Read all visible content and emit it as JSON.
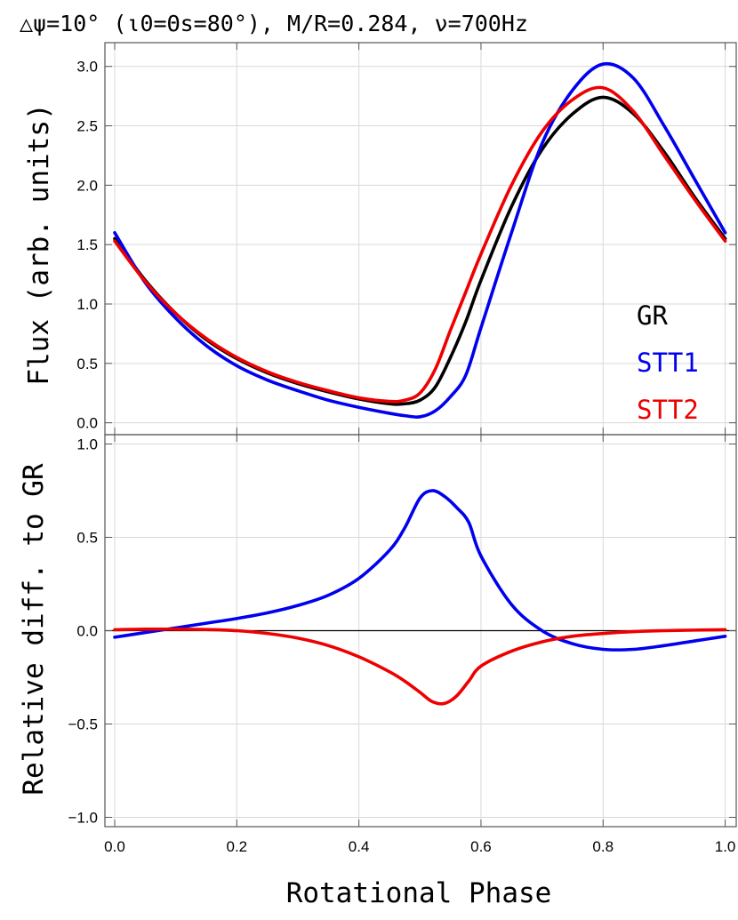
{
  "title": "△ψ=10° (ι0=Θs=80°), M/R=0.284, ν=700Hz",
  "chart_data": [
    {
      "type": "line",
      "ylabel": "Flux (arb. units)",
      "xlim": [
        0,
        1
      ],
      "ylim": [
        -0.1,
        3.2
      ],
      "x_ticks": [
        0.0,
        0.2,
        0.4,
        0.6,
        0.8,
        1.0
      ],
      "y_ticks": [
        0.0,
        0.5,
        1.0,
        1.5,
        2.0,
        2.5,
        3.0
      ],
      "y_tick_labels": [
        "0.0",
        "0.5",
        "1.0",
        "1.5",
        "2.0",
        "2.5",
        "3.0"
      ],
      "grid": true,
      "legend_position": "right",
      "x": [
        0.0,
        0.05,
        0.1,
        0.15,
        0.2,
        0.25,
        0.3,
        0.35,
        0.4,
        0.45,
        0.475,
        0.5,
        0.525,
        0.55,
        0.575,
        0.6,
        0.65,
        0.7,
        0.75,
        0.8,
        0.85,
        0.9,
        0.95,
        1.0
      ],
      "series": [
        {
          "name": "GR",
          "color": "#000000",
          "values": [
            1.55,
            1.2,
            0.92,
            0.7,
            0.54,
            0.42,
            0.33,
            0.26,
            0.2,
            0.16,
            0.16,
            0.19,
            0.3,
            0.55,
            0.85,
            1.2,
            1.82,
            2.3,
            2.6,
            2.74,
            2.6,
            2.28,
            1.9,
            1.55
          ]
        },
        {
          "name": "STT1",
          "color": "#0000ee",
          "values": [
            1.6,
            1.18,
            0.88,
            0.65,
            0.48,
            0.36,
            0.27,
            0.19,
            0.13,
            0.08,
            0.06,
            0.05,
            0.1,
            0.22,
            0.4,
            0.8,
            1.6,
            2.35,
            2.8,
            3.02,
            2.9,
            2.5,
            2.05,
            1.6
          ]
        },
        {
          "name": "STT2",
          "color": "#ee0000",
          "values": [
            1.53,
            1.19,
            0.92,
            0.71,
            0.55,
            0.43,
            0.34,
            0.27,
            0.21,
            0.18,
            0.19,
            0.25,
            0.45,
            0.78,
            1.1,
            1.42,
            2.0,
            2.45,
            2.72,
            2.82,
            2.62,
            2.25,
            1.88,
            1.53
          ]
        }
      ]
    },
    {
      "type": "line",
      "ylabel": "Relative diff. to GR",
      "xlabel": "Rotational Phase",
      "xlim": [
        0,
        1
      ],
      "ylim": [
        -1.05,
        1.05
      ],
      "x_ticks": [
        0.0,
        0.2,
        0.4,
        0.6,
        0.8,
        1.0
      ],
      "x_tick_labels": [
        "0.0",
        "0.2",
        "0.4",
        "0.6",
        "0.8",
        "1.0"
      ],
      "y_ticks": [
        -1.0,
        -0.5,
        0.0,
        0.5,
        1.0
      ],
      "y_tick_labels": [
        "−1.0",
        "−0.5",
        "0.0",
        "0.5",
        "1.0"
      ],
      "grid": true,
      "x": [
        0.0,
        0.05,
        0.1,
        0.15,
        0.2,
        0.25,
        0.3,
        0.35,
        0.4,
        0.45,
        0.475,
        0.5,
        0.52,
        0.54,
        0.56,
        0.58,
        0.6,
        0.65,
        0.7,
        0.75,
        0.8,
        0.85,
        0.9,
        0.95,
        1.0
      ],
      "series": [
        {
          "color": "#0000ee",
          "values": [
            -0.035,
            -0.01,
            0.015,
            0.04,
            0.065,
            0.095,
            0.135,
            0.19,
            0.28,
            0.43,
            0.55,
            0.71,
            0.75,
            0.72,
            0.66,
            0.58,
            0.4,
            0.14,
            0.0,
            -0.07,
            -0.1,
            -0.1,
            -0.08,
            -0.055,
            -0.03
          ]
        },
        {
          "color": "#ee0000",
          "values": [
            0.005,
            0.008,
            0.008,
            0.006,
            0.0,
            -0.015,
            -0.04,
            -0.08,
            -0.14,
            -0.22,
            -0.27,
            -0.33,
            -0.38,
            -0.39,
            -0.35,
            -0.27,
            -0.19,
            -0.11,
            -0.06,
            -0.03,
            -0.015,
            -0.005,
            0.0,
            0.003,
            0.005
          ]
        }
      ]
    }
  ]
}
